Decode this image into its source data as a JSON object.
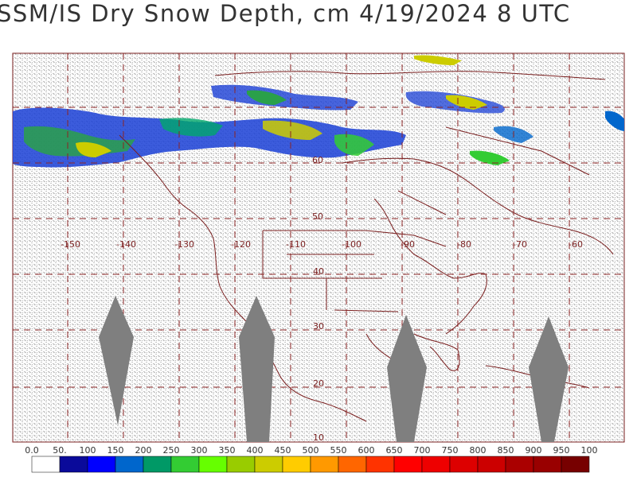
{
  "title": "SSM/IS Dry Snow Depth, cm 4/19/2024 8 UTC",
  "map": {
    "longitude_labels": [
      "-150",
      "-140",
      "-130",
      "-120",
      "-110",
      "-100",
      "-90",
      "-80",
      "-70",
      "-60"
    ],
    "latitude_labels": [
      "60",
      "50",
      "40",
      "30",
      "20",
      "10"
    ],
    "missing_color": "#7f7f7f",
    "grid_color": "#8b2323"
  },
  "color_scale": {
    "labels": [
      "0.0",
      "50.",
      "100",
      "150",
      "200",
      "250",
      "300",
      "350",
      "400",
      "450",
      "500",
      "550",
      "600",
      "650",
      "700",
      "750",
      "800",
      "850",
      "900",
      "950",
      "100"
    ],
    "colors": [
      "#ffffff",
      "#0a0a9a",
      "#0000ff",
      "#0066cc",
      "#009966",
      "#33cc33",
      "#66ff00",
      "#99cc00",
      "#cccc00",
      "#ffcc00",
      "#ff9900",
      "#ff6600",
      "#ff3300",
      "#ff0000",
      "#ee0000",
      "#dd0000",
      "#cc0000",
      "#aa0000",
      "#990000",
      "#770000"
    ]
  }
}
